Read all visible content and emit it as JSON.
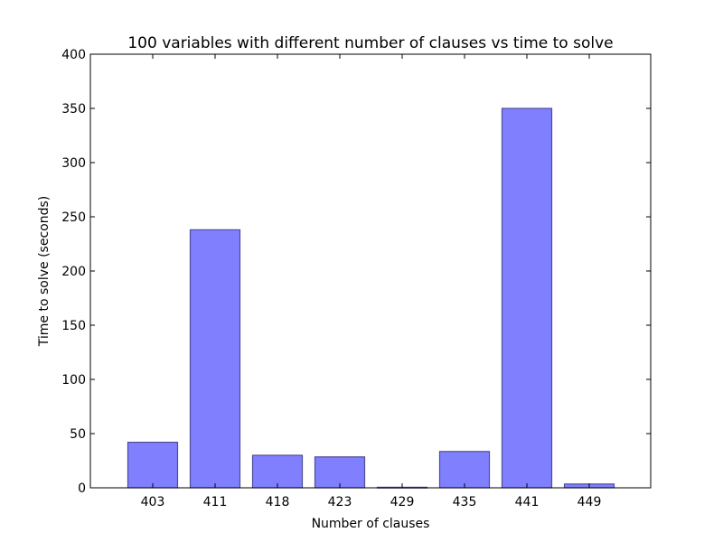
{
  "chart_data": {
    "type": "bar",
    "title": "100 variables with different number of clauses vs time to solve",
    "xlabel": "Number of clauses",
    "ylabel": "Time to solve (seconds)",
    "categories": [
      "403",
      "411",
      "418",
      "423",
      "429",
      "435",
      "441",
      "449"
    ],
    "values": [
      42,
      238,
      30,
      28.5,
      0.5,
      33.5,
      350,
      3.5
    ],
    "ylim": [
      0,
      400
    ],
    "yticks": [
      0,
      50,
      100,
      150,
      200,
      250,
      300,
      350,
      400
    ],
    "grid": false,
    "bar_color": "#8080ff",
    "bar_edge_color": "#4d4d99"
  }
}
